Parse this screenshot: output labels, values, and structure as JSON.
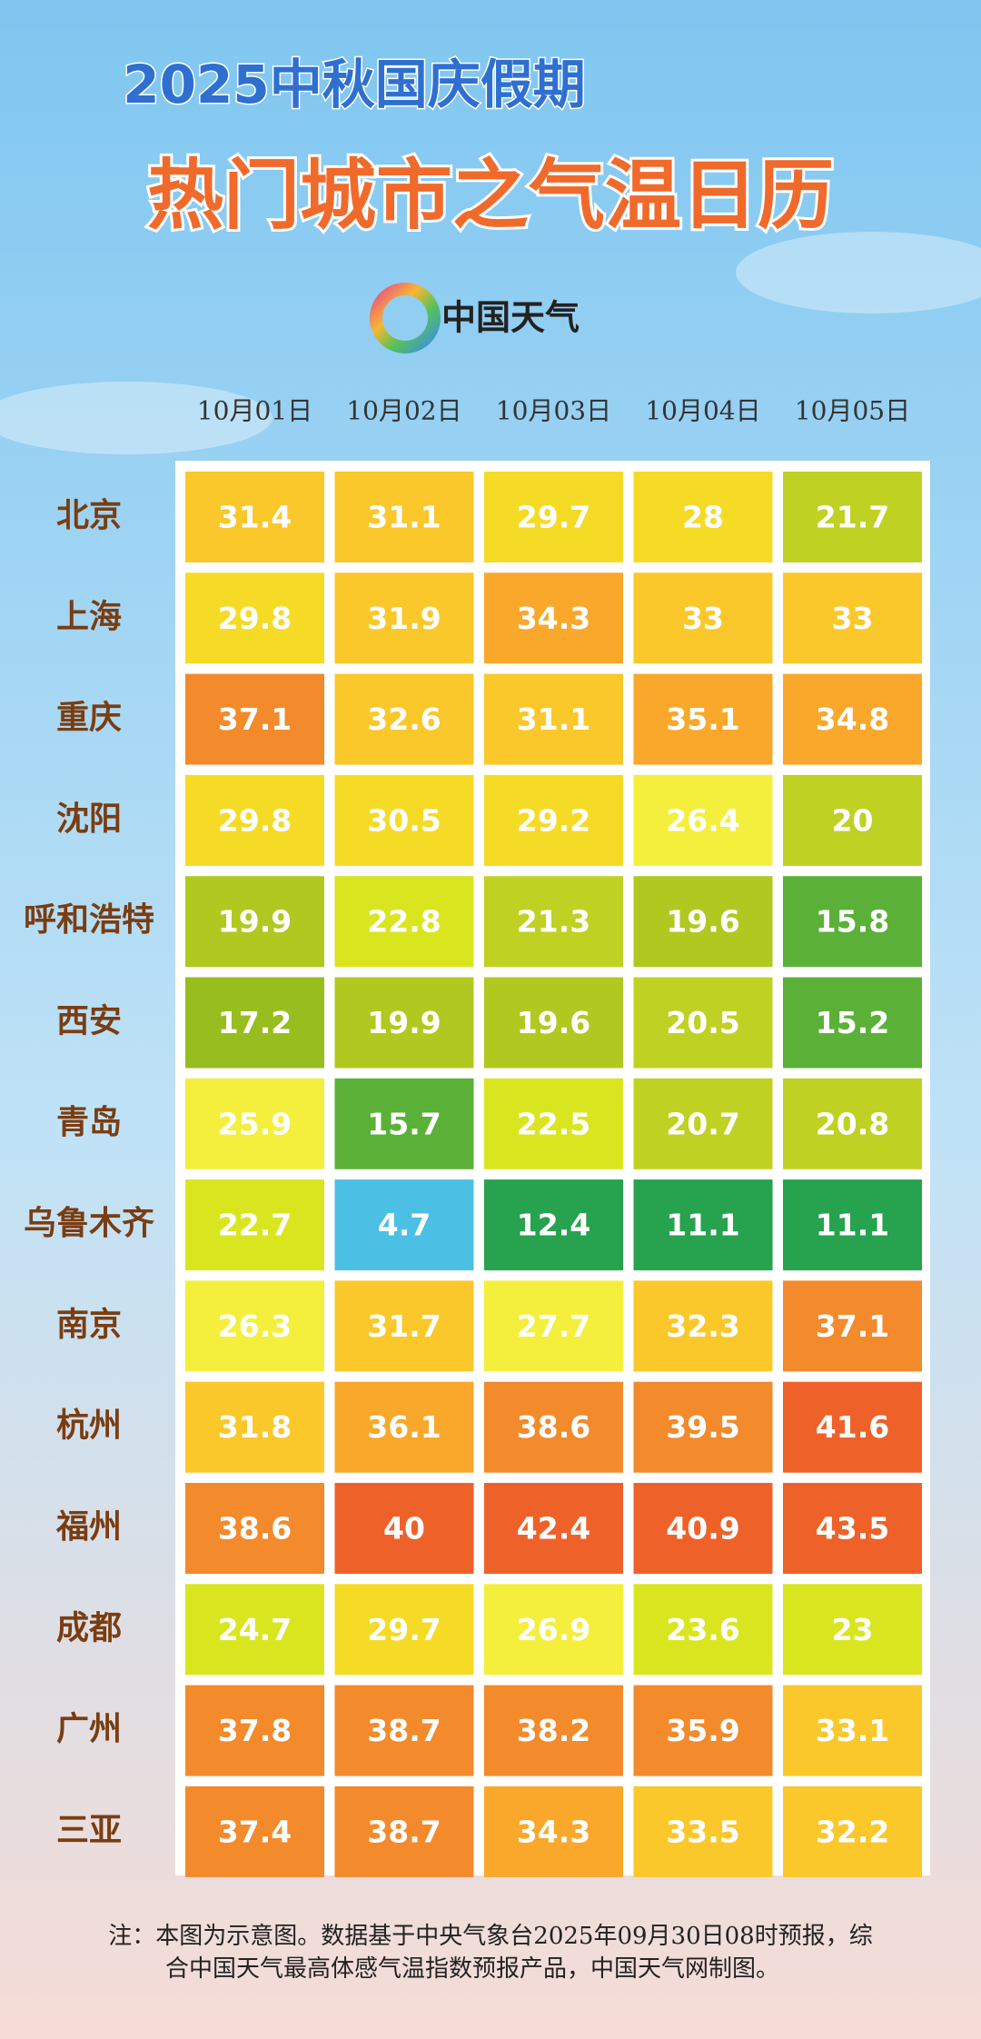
{
  "header": {
    "title_line1": "2025中秋国庆假期",
    "title_line2": "热门城市之气温日历",
    "brand": "中国天气"
  },
  "chart_data": {
    "type": "heatmap",
    "x_categories": [
      "10月01日",
      "10月02日",
      "10月03日",
      "10月04日",
      "10月05日"
    ],
    "y_categories": [
      "北京",
      "上海",
      "重庆",
      "沈阳",
      "呼和浩特",
      "西安",
      "青岛",
      "乌鲁木齐",
      "南京",
      "杭州",
      "福州",
      "成都",
      "广州",
      "三亚"
    ],
    "values": [
      [
        31.4,
        31.1,
        29.7,
        28,
        21.7
      ],
      [
        29.8,
        31.9,
        34.3,
        33,
        33
      ],
      [
        37.1,
        32.6,
        31.1,
        35.1,
        34.8
      ],
      [
        29.8,
        30.5,
        29.2,
        26.4,
        20
      ],
      [
        19.9,
        22.8,
        21.3,
        19.6,
        15.8
      ],
      [
        17.2,
        19.9,
        19.6,
        20.5,
        15.2
      ],
      [
        25.9,
        15.7,
        22.5,
        20.7,
        20.8
      ],
      [
        22.7,
        4.7,
        12.4,
        11.1,
        11.1
      ],
      [
        26.3,
        31.7,
        27.7,
        32.3,
        37.1
      ],
      [
        31.8,
        36.1,
        38.6,
        39.5,
        41.6
      ],
      [
        38.6,
        40,
        42.4,
        40.9,
        43.5
      ],
      [
        24.7,
        29.7,
        26.9,
        23.6,
        23
      ],
      [
        37.8,
        38.7,
        38.2,
        35.9,
        33.1
      ],
      [
        37.4,
        38.7,
        34.3,
        33.5,
        32.2
      ]
    ],
    "colors": [
      [
        "#fac82a",
        "#fac82a",
        "#f5db25",
        "#f5db25",
        "#bfd122"
      ],
      [
        "#f5db25",
        "#fac82a",
        "#f9a82b",
        "#fac82a",
        "#fac82a"
      ],
      [
        "#f38a2c",
        "#fac82a",
        "#fac82a",
        "#f9a82b",
        "#f9a82b"
      ],
      [
        "#f5db25",
        "#f5db25",
        "#f5db25",
        "#f3ef3c",
        "#bfd122"
      ],
      [
        "#b0c920",
        "#d9e61f",
        "#bfd122",
        "#b0c920",
        "#5bb137"
      ],
      [
        "#97bd1f",
        "#b0c920",
        "#b0c920",
        "#bfd122",
        "#5bb137"
      ],
      [
        "#f3ef3c",
        "#5bb137",
        "#d9e61f",
        "#bfd122",
        "#bfd122"
      ],
      [
        "#d9e61f",
        "#4cbfe4",
        "#27a24f",
        "#27a24f",
        "#27a24f"
      ],
      [
        "#f3ef3c",
        "#fac82a",
        "#f3ef3c",
        "#fac82a",
        "#f38a2c"
      ],
      [
        "#fac82a",
        "#f9a82b",
        "#f38a2c",
        "#f38a2c",
        "#ee622a"
      ],
      [
        "#f38a2c",
        "#ee622a",
        "#ee622a",
        "#ee622a",
        "#ee622a"
      ],
      [
        "#d9e61f",
        "#f5db25",
        "#f3ef3c",
        "#d9e61f",
        "#d9e61f"
      ],
      [
        "#f38a2c",
        "#f38a2c",
        "#f38a2c",
        "#f38a2c",
        "#fac82a"
      ],
      [
        "#f38a2c",
        "#f38a2c",
        "#f9a82b",
        "#fac82a",
        "#fac82a"
      ]
    ]
  },
  "note": {
    "line1": "注：本图为示意图。数据基于中央气象台2025年09月30日08时预报，综",
    "line2": "合中国天气最高体感气温指数预报产品，中国天气网制图。"
  }
}
